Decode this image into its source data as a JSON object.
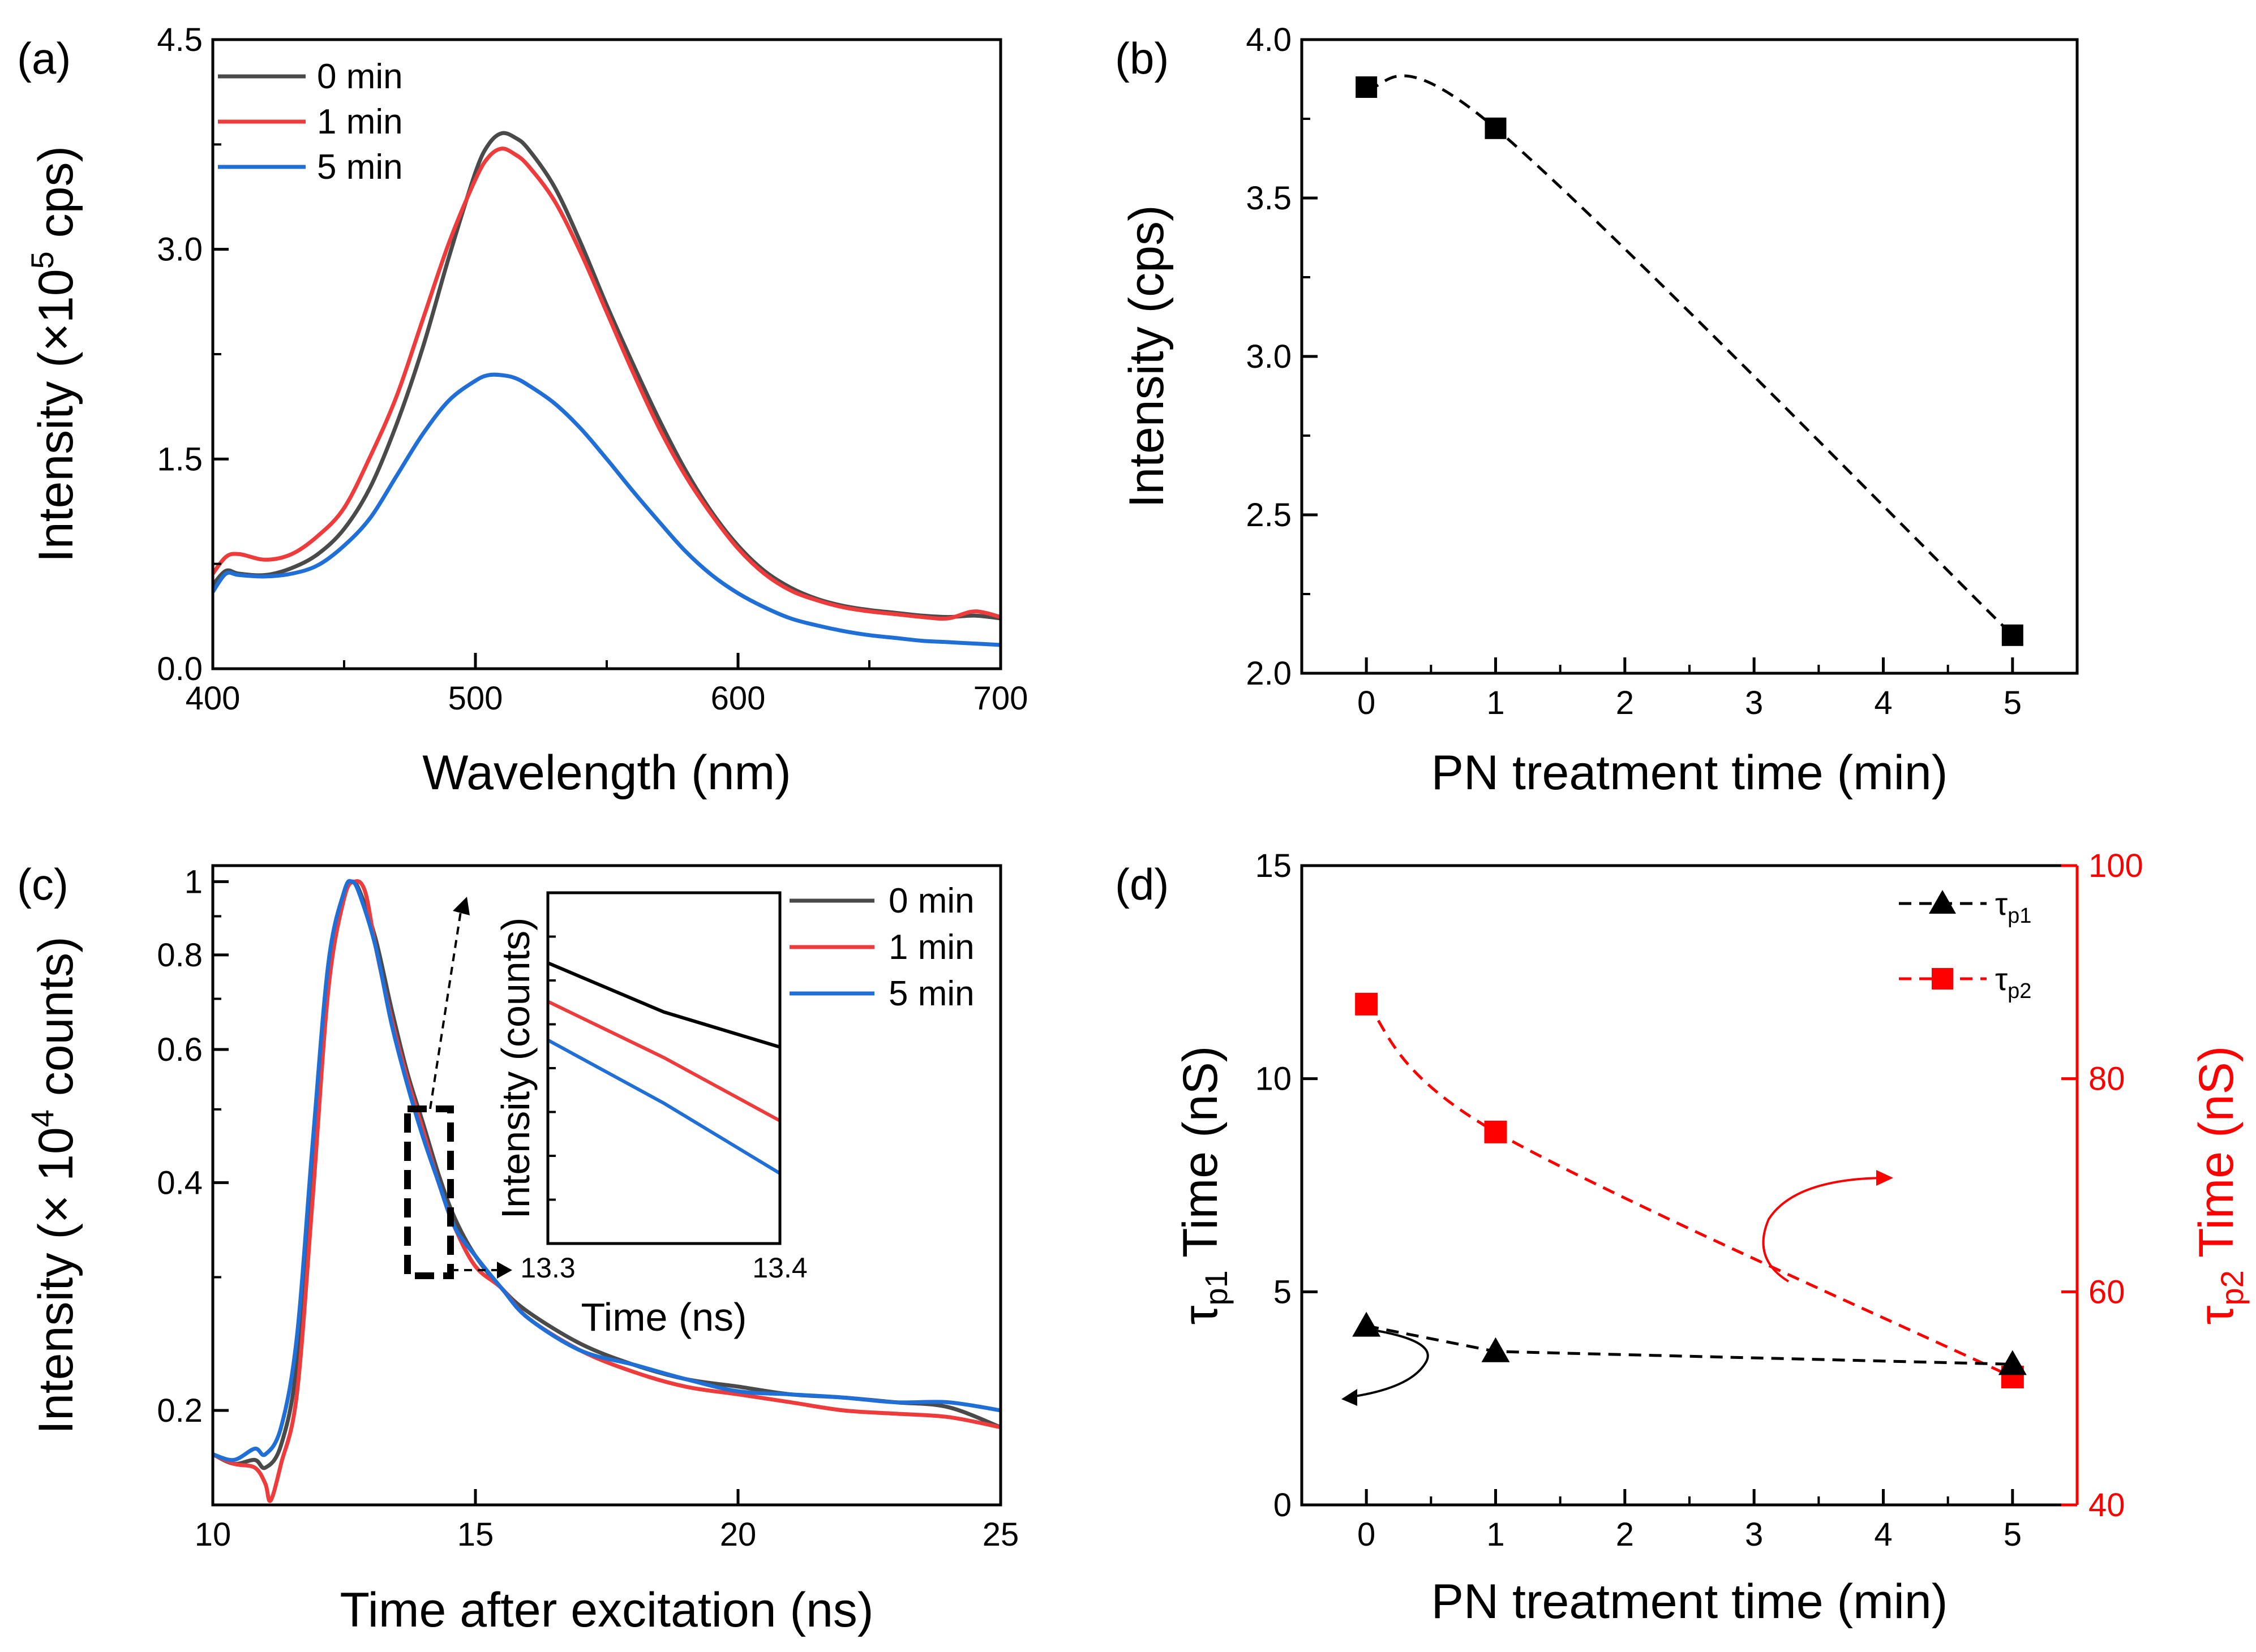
{
  "chart_data": [
    {
      "panel": "(a)",
      "type": "line",
      "title": "",
      "xlabel": "Wavelength (nm)",
      "ylabel": "Intensity (×10⁵ cps)",
      "xlim": [
        400,
        700
      ],
      "ylim": [
        0,
        4.5
      ],
      "xticks": [
        "400",
        "500",
        "600",
        "700"
      ],
      "yticks": [
        "0.0",
        "1.5",
        "3.0",
        "4.5"
      ],
      "legend_position": "top-left",
      "series": [
        {
          "name": "0 min",
          "color": "#4a4a4a",
          "x": [
            400,
            405,
            410,
            420,
            430,
            440,
            450,
            460,
            470,
            480,
            490,
            500,
            505,
            510,
            515,
            520,
            530,
            540,
            550,
            560,
            570,
            580,
            590,
            600,
            610,
            620,
            630,
            640,
            650,
            660,
            670,
            680,
            690,
            700
          ],
          "y": [
            0.6,
            0.7,
            0.68,
            0.67,
            0.72,
            0.82,
            1.0,
            1.3,
            1.75,
            2.3,
            2.95,
            3.55,
            3.75,
            3.83,
            3.8,
            3.72,
            3.45,
            3.05,
            2.6,
            2.18,
            1.78,
            1.42,
            1.12,
            0.88,
            0.7,
            0.58,
            0.5,
            0.45,
            0.42,
            0.4,
            0.38,
            0.37,
            0.38,
            0.36
          ]
        },
        {
          "name": "1 min",
          "color": "#ee3b3b",
          "x": [
            400,
            405,
            410,
            420,
            430,
            440,
            450,
            460,
            470,
            480,
            490,
            500,
            505,
            510,
            515,
            520,
            530,
            540,
            550,
            560,
            570,
            580,
            590,
            600,
            610,
            620,
            630,
            640,
            650,
            660,
            670,
            680,
            690,
            700
          ],
          "y": [
            0.68,
            0.8,
            0.82,
            0.78,
            0.82,
            0.95,
            1.15,
            1.52,
            1.95,
            2.5,
            3.05,
            3.5,
            3.66,
            3.72,
            3.68,
            3.6,
            3.35,
            2.98,
            2.55,
            2.12,
            1.72,
            1.38,
            1.1,
            0.86,
            0.68,
            0.56,
            0.49,
            0.44,
            0.41,
            0.39,
            0.37,
            0.36,
            0.41,
            0.37
          ]
        },
        {
          "name": "5 min",
          "color": "#1f6fd6",
          "x": [
            400,
            405,
            410,
            420,
            430,
            440,
            450,
            460,
            470,
            480,
            490,
            500,
            505,
            510,
            515,
            520,
            530,
            540,
            550,
            560,
            570,
            580,
            590,
            600,
            610,
            620,
            630,
            640,
            650,
            660,
            670,
            680,
            690,
            700
          ],
          "y": [
            0.55,
            0.68,
            0.67,
            0.66,
            0.68,
            0.74,
            0.88,
            1.08,
            1.38,
            1.68,
            1.92,
            2.06,
            2.1,
            2.1,
            2.08,
            2.03,
            1.9,
            1.72,
            1.5,
            1.27,
            1.05,
            0.84,
            0.67,
            0.54,
            0.44,
            0.36,
            0.31,
            0.27,
            0.24,
            0.22,
            0.2,
            0.19,
            0.18,
            0.17
          ]
        }
      ]
    },
    {
      "panel": "(b)",
      "type": "scatter",
      "title": "",
      "xlabel": "PN treatment time (min)",
      "ylabel": "Intensity (cps)",
      "xlim": [
        -0.5,
        5.5
      ],
      "ylim": [
        2.0,
        4.0
      ],
      "xticks": [
        "0",
        "1",
        "2",
        "3",
        "4",
        "5"
      ],
      "yticks": [
        "2.0",
        "2.5",
        "3.0",
        "3.5",
        "4.0"
      ],
      "series": [
        {
          "name": "Intensity",
          "color": "#000000",
          "marker": "square",
          "line": "dashed",
          "x": [
            0,
            1,
            5
          ],
          "y": [
            3.85,
            3.72,
            2.12
          ]
        }
      ]
    },
    {
      "panel": "(c)",
      "type": "line",
      "title": "",
      "xlabel": "Time after excitation (ns)",
      "ylabel": "Intensity (× 10⁴ counts)",
      "yscale": "log",
      "xlim": [
        10,
        25
      ],
      "ylim": [
        0.15,
        1.05
      ],
      "xticks": [
        "10",
        "15",
        "20",
        "25"
      ],
      "yticks": [
        "0.2",
        "0.4",
        "0.6",
        "0.8",
        "1"
      ],
      "legend_position": "top-right",
      "series": [
        {
          "name": "0 min",
          "color": "#4a4a4a",
          "x": [
            10,
            10.4,
            10.8,
            11.0,
            11.3,
            11.6,
            11.9,
            12.2,
            12.5,
            12.65,
            12.8,
            13.1,
            13.4,
            13.7,
            14.0,
            14.3,
            14.6,
            15.0,
            15.5,
            16,
            17,
            18,
            19,
            20,
            21,
            22,
            23,
            24,
            25
          ],
          "y": [
            0.175,
            0.17,
            0.172,
            0.168,
            0.18,
            0.23,
            0.42,
            0.75,
            0.96,
            1.0,
            0.97,
            0.84,
            0.68,
            0.56,
            0.48,
            0.41,
            0.36,
            0.32,
            0.29,
            0.27,
            0.245,
            0.23,
            0.22,
            0.215,
            0.21,
            0.208,
            0.205,
            0.202,
            0.19
          ]
        },
        {
          "name": "1 min",
          "color": "#ee3b3b",
          "x": [
            10,
            10.4,
            10.8,
            11.0,
            11.1,
            11.3,
            11.6,
            11.9,
            12.2,
            12.5,
            12.7,
            12.9,
            13.1,
            13.4,
            13.7,
            14.0,
            14.3,
            14.6,
            15.0,
            15.5,
            16,
            17,
            18,
            19,
            20,
            21,
            22,
            23,
            24,
            25
          ],
          "y": [
            0.175,
            0.17,
            0.168,
            0.16,
            0.152,
            0.17,
            0.21,
            0.38,
            0.72,
            0.95,
            1.0,
            0.97,
            0.82,
            0.66,
            0.55,
            0.47,
            0.4,
            0.35,
            0.31,
            0.29,
            0.265,
            0.24,
            0.225,
            0.215,
            0.21,
            0.205,
            0.2,
            0.198,
            0.196,
            0.19
          ]
        },
        {
          "name": "5 min",
          "color": "#1f6fd6",
          "x": [
            10,
            10.4,
            10.8,
            11.0,
            11.3,
            11.6,
            11.9,
            12.2,
            12.5,
            12.65,
            12.8,
            13.1,
            13.4,
            13.7,
            14.0,
            14.3,
            14.6,
            15.0,
            15.5,
            16,
            17,
            18,
            19,
            20,
            21,
            22,
            23,
            24,
            25
          ],
          "y": [
            0.175,
            0.172,
            0.178,
            0.175,
            0.19,
            0.25,
            0.45,
            0.78,
            0.97,
            1.0,
            0.96,
            0.82,
            0.65,
            0.54,
            0.46,
            0.4,
            0.35,
            0.32,
            0.29,
            0.265,
            0.24,
            0.23,
            0.22,
            0.212,
            0.21,
            0.208,
            0.205,
            0.205,
            0.2
          ]
        }
      ],
      "inset": {
        "xlabel": "Time (ns)",
        "ylabel": "Intensity (counts)",
        "xticks": [
          "13.3",
          "13.4"
        ],
        "series": [
          {
            "name": "0 min",
            "color": "#000000",
            "x": [
              13.3,
              13.35,
              13.4
            ],
            "y": [
              0.8,
              0.66,
              0.56
            ]
          },
          {
            "name": "1 min",
            "color": "#ee3b3b",
            "x": [
              13.3,
              13.35,
              13.4
            ],
            "y": [
              0.69,
              0.53,
              0.35
            ]
          },
          {
            "name": "5 min",
            "color": "#1f6fd6",
            "x": [
              13.3,
              13.35,
              13.4
            ],
            "y": [
              0.58,
              0.4,
              0.2
            ]
          }
        ]
      }
    },
    {
      "panel": "(d)",
      "type": "scatter",
      "title": "",
      "xlabel": "PN treatment time (min)",
      "ylabel_left_parts": [
        "τ",
        "p1",
        " Time (nS)"
      ],
      "ylabel_right_parts": [
        "τ",
        "p2",
        " Time (nS)"
      ],
      "xlim": [
        -0.5,
        5.5
      ],
      "ylim_left": [
        0,
        15
      ],
      "ylim_right": [
        40,
        100
      ],
      "xticks": [
        "0",
        "1",
        "2",
        "3",
        "4",
        "5"
      ],
      "yticks_left": [
        "0",
        "5",
        "10",
        "15"
      ],
      "yticks_right": [
        "40",
        "60",
        "80",
        "100"
      ],
      "legend_position": "top-right",
      "series": [
        {
          "name": "τp1",
          "name_parts": [
            "τ",
            "p1"
          ],
          "color": "#000000",
          "marker": "triangle",
          "line": "dashed",
          "axis": "left",
          "x": [
            0,
            1,
            5
          ],
          "y": [
            4.2,
            3.6,
            3.3
          ]
        },
        {
          "name": "τp2",
          "name_parts": [
            "τ",
            "p2"
          ],
          "color": "#ff0000",
          "marker": "square",
          "line": "dashed",
          "axis": "right",
          "x": [
            0,
            1,
            5
          ],
          "y": [
            87,
            75,
            52
          ]
        }
      ]
    }
  ],
  "labels": {
    "panel_a": "(a)",
    "panel_b": "(b)",
    "panel_c": "(c)",
    "panel_d": "(d)",
    "a_ylabel_main": "Intensity (×10",
    "a_ylabel_exp": "5",
    "a_ylabel_end": " cps)",
    "c_ylabel_main": "Intensity (× 10",
    "c_ylabel_exp": "4",
    "c_ylabel_end": " counts)"
  }
}
